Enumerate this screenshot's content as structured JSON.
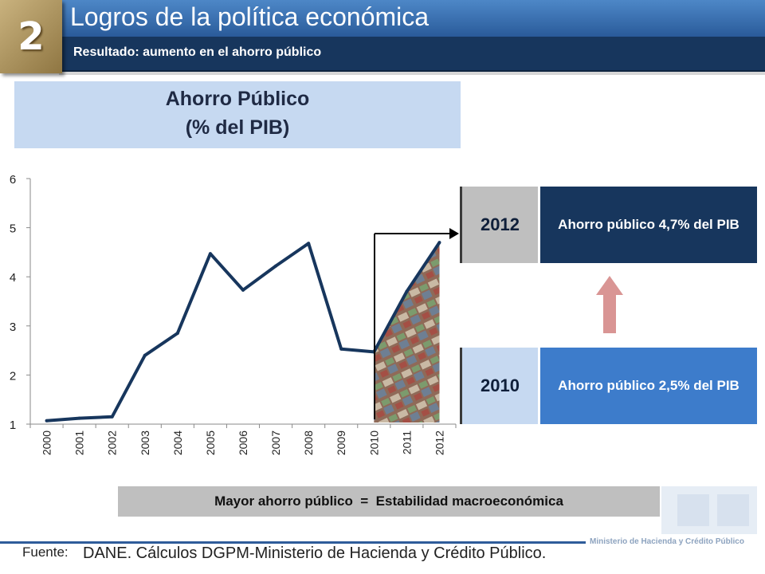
{
  "header": {
    "badge_number": "2",
    "title": "Logros de la política económica",
    "subtitle": "Resultado: aumento en el ahorro público"
  },
  "chart_title": {
    "line1": "Ahorro Público",
    "line2": "(% del PIB)"
  },
  "chart_data": {
    "type": "line",
    "x": [
      "2000",
      "2001",
      "2002",
      "2003",
      "2004",
      "2005",
      "2006",
      "2007",
      "2008",
      "2009",
      "2010",
      "2011",
      "2012"
    ],
    "series": [
      {
        "values": [
          1.07,
          1.12,
          1.15,
          2.4,
          2.85,
          4.47,
          3.73,
          4.22,
          4.68,
          2.53,
          2.47,
          3.7,
          4.7
        ]
      }
    ],
    "ylim": [
      1,
      6
    ],
    "yticks": [
      "1",
      "2",
      "3",
      "4",
      "5",
      "6"
    ],
    "grid": false,
    "line_color": "#17365d"
  },
  "comparison": {
    "top": {
      "year": "2012",
      "text": "Ahorro público  4,7% del PIB"
    },
    "bottom": {
      "year": "2010",
      "text": "Ahorro público  2,5% del PIB"
    },
    "arrow_color": "#d99594"
  },
  "summary": "Mayor ahorro público  =  Estabilidad macroeconómica",
  "footer": {
    "fuente_label": "Fuente:",
    "fuente_text": "DANE. Cálculos DGPM-Ministerio de Hacienda y Crédito Público.",
    "ministry": "Ministerio de Hacienda y Crédito Público"
  }
}
